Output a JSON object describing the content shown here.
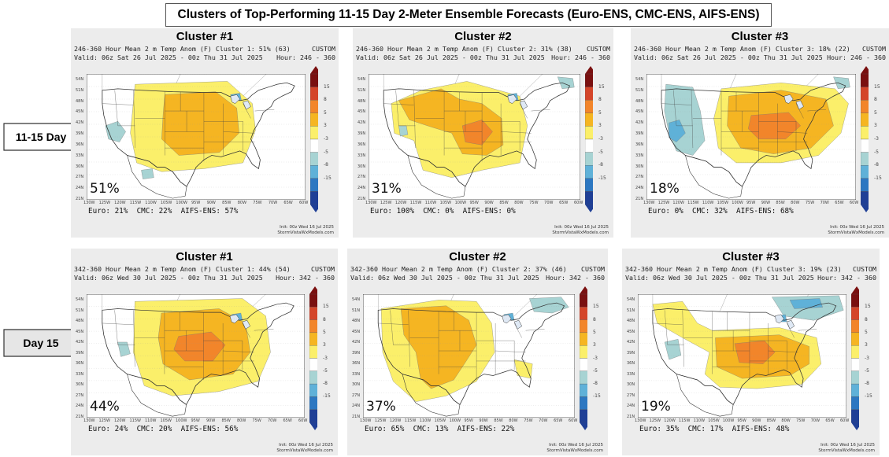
{
  "title": "Clusters of Top-Performing 11-15 Day 2-Meter Ensemble Forecasts (Euro-ENS, CMC-ENS, AIFS-ENS)",
  "row_labels": [
    "11-15 Day",
    "Day 15"
  ],
  "colorbar": {
    "ticks": [
      "15",
      "8",
      "5",
      "3",
      "-3",
      "-5",
      "-8",
      "-15"
    ],
    "colors": [
      "#7a1010",
      "#d4452a",
      "#f2852a",
      "#f5b522",
      "#fbef6a",
      "#ffffff",
      "#a7d3d3",
      "#5fb1d8",
      "#2c77c1",
      "#1f3f96"
    ]
  },
  "lat_labels": [
    "54N",
    "51N",
    "48N",
    "45N",
    "42N",
    "39N",
    "36N",
    "33N",
    "30N",
    "27N",
    "24N",
    "21N"
  ],
  "lon_labels": [
    "130W",
    "125W",
    "120W",
    "115W",
    "110W",
    "105W",
    "100W",
    "95W",
    "90W",
    "85W",
    "80W",
    "75W",
    "70W",
    "65W",
    "60W"
  ],
  "credit": [
    "Init: 00z Wed 16 Jul 2025",
    "StormVistaWxModels.com"
  ],
  "panels": [
    {
      "title": "Cluster #1",
      "line1": "246-360 Hour Mean 2 m Temp Anom (F) Cluster 1: 51% (63)",
      "custom": "CUSTOM",
      "line2": "Valid: 06z Sat 26 Jul 2025 - 00z Thu 31 Jul 2025",
      "hour": "Hour: 246 - 360",
      "pct": "51%",
      "euro": "Euro: 21%",
      "cmc": "CMC: 22%",
      "aifs": "AIFS-ENS: 57%",
      "pattern": "central-warm"
    },
    {
      "title": "Cluster #2",
      "line1": "246-360 Hour Mean 2 m Temp Anom (F) Cluster 2: 31% (38)",
      "custom": "CUSTOM",
      "line2": "Valid: 06z Sat 26 Jul 2025 - 00z Thu 31 Jul 2025",
      "hour": "Hour: 246 - 360",
      "pct": "31%",
      "euro": "Euro: 100%",
      "cmc": "CMC: 0%",
      "aifs": "AIFS-ENS: 0%",
      "pattern": "plains-warm"
    },
    {
      "title": "Cluster #3",
      "line1": "246-360 Hour Mean 2 m Temp Anom (F) Cluster 3: 18% (22)",
      "custom": "CUSTOM",
      "line2": "Valid: 06z Sat 26 Jul 2025 - 00z Thu 31 Jul 2025",
      "hour": "Hour: 246 - 360",
      "pct": "18%",
      "euro": "Euro: 0%",
      "cmc": "CMC: 32%",
      "aifs": "AIFS-ENS: 68%",
      "pattern": "east-warm-west-cool"
    },
    {
      "title": "Cluster #1",
      "line1": "342-360 Hour Mean 2 m Temp Anom (F) Cluster 1: 44% (54)",
      "custom": "CUSTOM",
      "line2": "Valid: 06z Wed 30 Jul 2025 - 00z Thu 31 Jul 2025",
      "hour": "Hour: 342 - 360",
      "pct": "44%",
      "euro": "Euro: 24%",
      "cmc": "CMC: 20%",
      "aifs": "AIFS-ENS: 56%",
      "pattern": "central-hot"
    },
    {
      "title": "Cluster #2",
      "line1": "342-360 Hour Mean 2 m Temp Anom (F) Cluster 2: 37% (46)",
      "custom": "CUSTOM",
      "line2": "Valid: 06z Wed 30 Jul 2025 - 00z Thu 31 Jul 2025",
      "hour": "Hour: 342 - 360",
      "pct": "37%",
      "euro": "Euro: 65%",
      "cmc": "CMC: 13%",
      "aifs": "AIFS-ENS: 22%",
      "pattern": "west-warm"
    },
    {
      "title": "Cluster #3",
      "line1": "342-360 Hour Mean 2 m Temp Anom (F) Cluster 3: 19% (23)",
      "custom": "CUSTOM",
      "line2": "Valid: 06z Wed 30 Jul 2025 - 00z Thu 31 Jul 2025",
      "hour": "Hour: 342 - 360",
      "pct": "19%",
      "euro": "Euro: 35%",
      "cmc": "CMC: 17%",
      "aifs": "AIFS-ENS: 48%",
      "pattern": "midwest-hot-ne-cool"
    }
  ]
}
